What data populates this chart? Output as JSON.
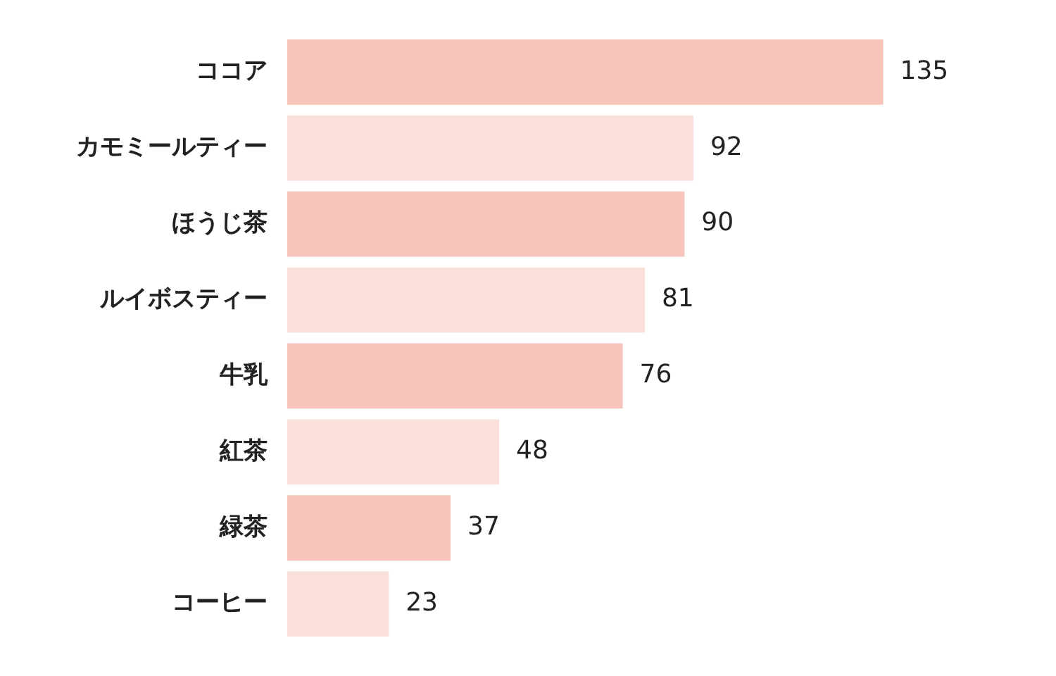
{
  "chart_data": {
    "type": "bar",
    "orientation": "horizontal",
    "categories": [
      "ココア",
      "カモミールティー",
      "ほうじ茶",
      "ルイボスティー",
      "牛乳",
      "紅茶",
      "緑茶",
      "コーヒー"
    ],
    "values": [
      135,
      92,
      90,
      81,
      76,
      48,
      37,
      23
    ],
    "colors": [
      "#f7c4b9",
      "#fbe0d9",
      "#f7c4b9",
      "#fbe0d9",
      "#f7c4b9",
      "#fbe0d9",
      "#f7c4b9",
      "#fbe0d9"
    ],
    "data_labels": true
  }
}
